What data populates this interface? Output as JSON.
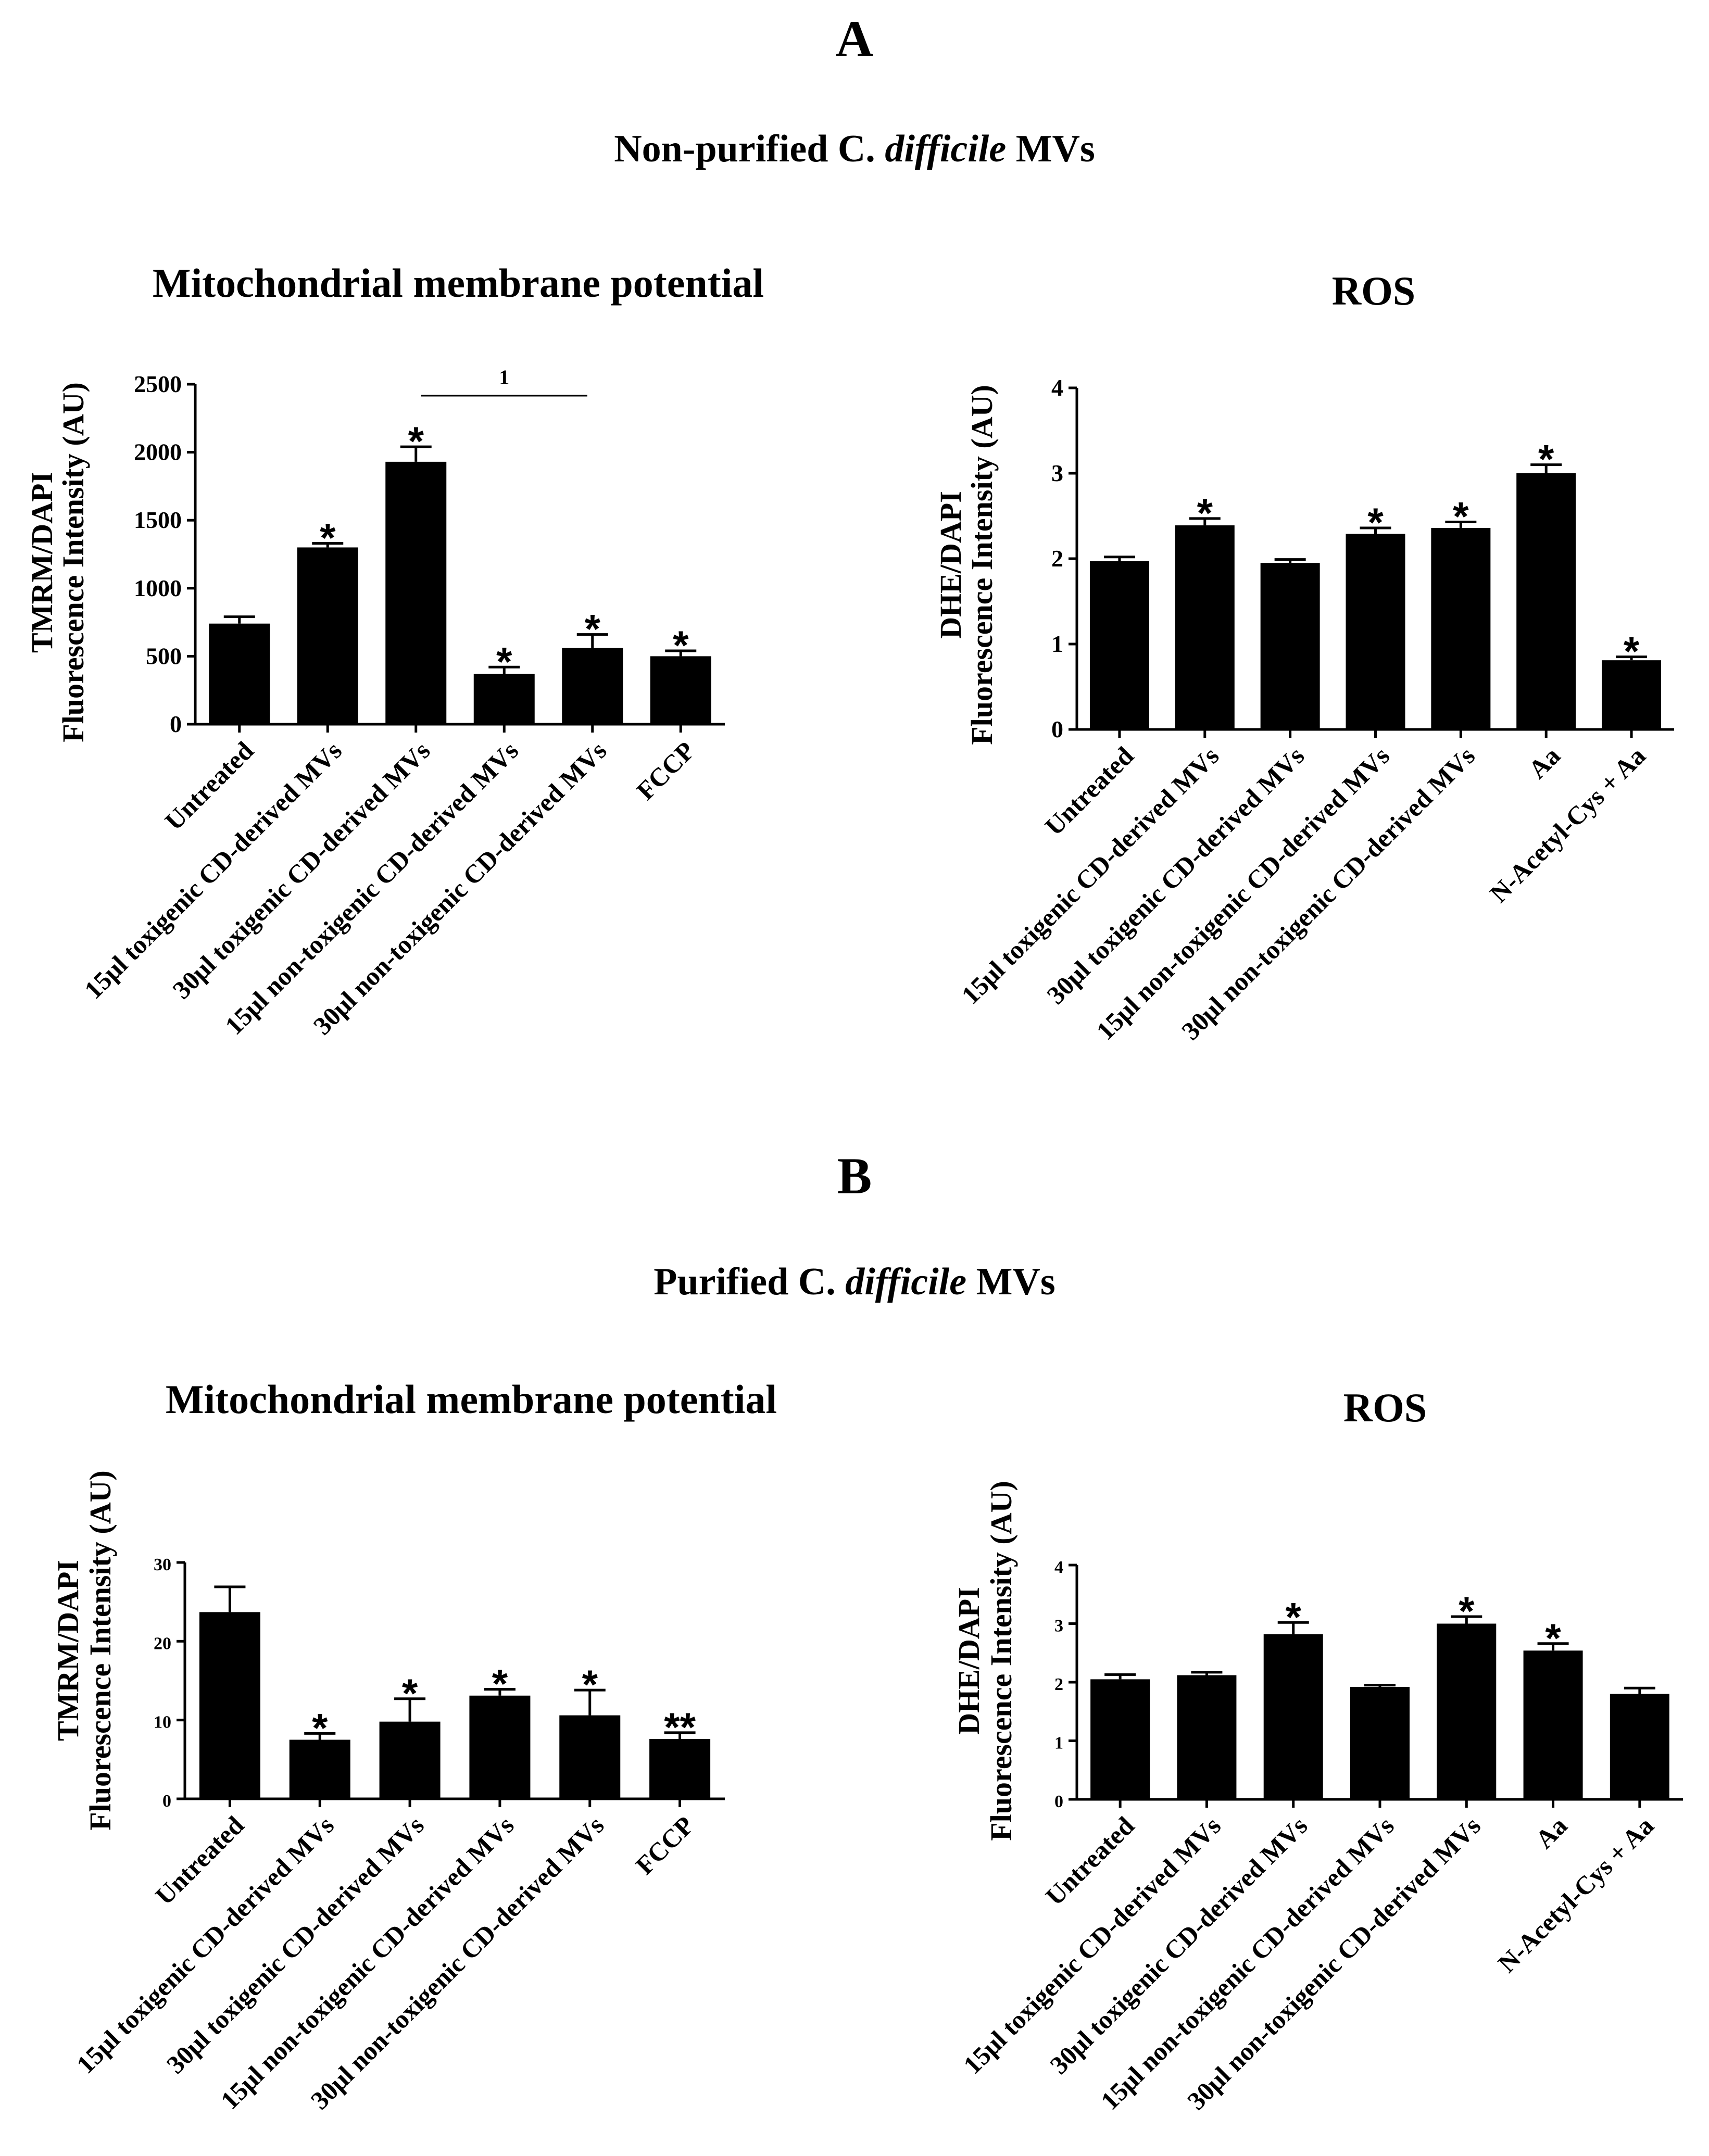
{
  "figure": {
    "panel_a": {
      "letter": "A",
      "title_pre": "Non-purified C. ",
      "title_em": "difficile",
      "title_post": " MVs"
    },
    "panel_b": {
      "letter": "B",
      "title_pre": "Purified C. ",
      "title_em": "difficile",
      "title_post": " MVs"
    }
  },
  "colors": {
    "bar": "#000000",
    "axis": "#000000",
    "background": "#ffffff"
  },
  "chart_data": [
    {
      "id": "A1",
      "type": "bar",
      "title": "Mitochondrial  membrane potential",
      "ylabel_line1": "TMRM/DAPI",
      "ylabel_line2": "Fluorescence Intensity (AU)",
      "xlabel": "",
      "ylim": [
        0,
        2500
      ],
      "yticks": [
        0,
        500,
        1000,
        1500,
        2000,
        2500
      ],
      "categories": [
        "Untreated",
        "15μl toxigenic CD-derived MVs",
        "30μl toxigenic CD-derived MVs",
        "15μl non-toxigenic CD-derived MVs",
        "30μl non-toxigenic CD-derived MVs",
        "FCCP"
      ],
      "values": [
        740,
        1300,
        1930,
        370,
        560,
        500
      ],
      "errors": [
        50,
        30,
        110,
        50,
        100,
        40
      ],
      "annotations": [
        "",
        "*",
        "*",
        "*",
        "*",
        "*"
      ],
      "bracket": {
        "from": 2,
        "to": 4,
        "label": "1"
      }
    },
    {
      "id": "A2",
      "type": "bar",
      "title": "ROS",
      "ylabel_line1": "DHE/DAPI",
      "ylabel_line2": "Fluorescence Intensity (AU)",
      "xlabel": "",
      "ylim": [
        0,
        4
      ],
      "yticks": [
        0,
        1,
        2,
        3,
        4
      ],
      "categories": [
        "Untreated",
        "15μl toxigenic CD-derived MVs",
        "30μl toxigenic CD-derived MVs",
        "15μl non-toxigenic CD-derived MVs",
        "30μl non-toxigenic CD-derived MVs",
        "Aa",
        "N-Acetyl-Cys + Aa"
      ],
      "values": [
        1.97,
        2.39,
        1.95,
        2.29,
        2.36,
        3.0,
        0.81
      ],
      "errors": [
        0.05,
        0.08,
        0.04,
        0.07,
        0.07,
        0.1,
        0.04
      ],
      "annotations": [
        "",
        "*",
        "",
        "*",
        "*",
        "*",
        "*"
      ]
    },
    {
      "id": "B1",
      "type": "bar",
      "title": "Mitochondrial  membrane potential",
      "ylabel_line1": "TMRM/DAPI",
      "ylabel_line2": "Fluorescence Intensity (AU)",
      "xlabel": "",
      "ylim": [
        0,
        30
      ],
      "yticks": [
        0,
        10,
        20,
        30
      ],
      "categories": [
        "Untreated",
        "15μl toxigenic CD-derived MVs",
        "30μl toxigenic CD-derived MVs",
        "15μl non-toxigenic CD-derived MVs",
        "30μl non-toxigenic CD-derived MVs",
        "FCCP"
      ],
      "values": [
        23.7,
        7.5,
        9.8,
        13.1,
        10.6,
        7.6
      ],
      "errors": [
        3.2,
        0.8,
        2.9,
        0.8,
        3.2,
        0.8
      ],
      "annotations": [
        "",
        "*",
        "*",
        "*",
        "*",
        "**"
      ]
    },
    {
      "id": "B2",
      "type": "bar",
      "title": "ROS",
      "ylabel_line1": "DHE/DAPI",
      "ylabel_line2": "Fluorescence Intensity (AU)",
      "xlabel": "",
      "ylim": [
        0,
        4
      ],
      "yticks": [
        0,
        1,
        2,
        3,
        4
      ],
      "categories": [
        "Untreated",
        "15μl toxigenic CD-derived MVs",
        "30μl toxigenic CD-derived MVs",
        "15μl non-toxigenic CD-derived MVs",
        "30μl non-toxigenic CD-derived MVs",
        "Aa",
        "N-Acetyl-Cys + Aa"
      ],
      "values": [
        2.05,
        2.12,
        2.82,
        1.92,
        3.0,
        2.54,
        1.8
      ],
      "errors": [
        0.08,
        0.05,
        0.2,
        0.03,
        0.12,
        0.12,
        0.1
      ],
      "annotations": [
        "",
        "",
        "*",
        "",
        "*",
        "*",
        ""
      ]
    }
  ]
}
